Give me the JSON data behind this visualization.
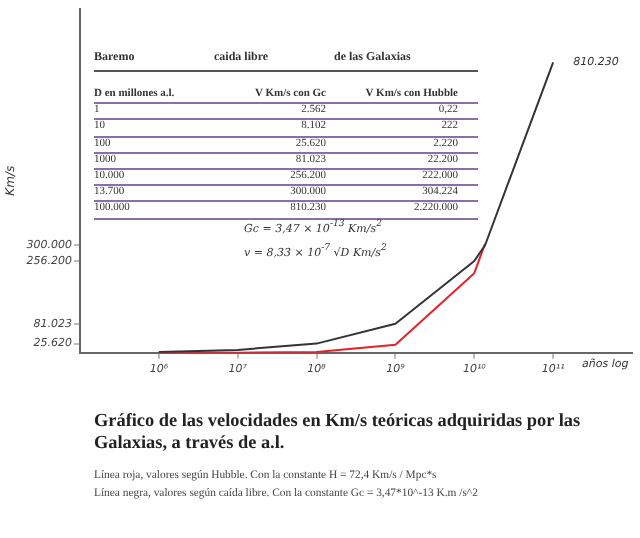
{
  "chart_data": {
    "type": "line",
    "title": "Gráfico de las velocidades en Km/s teóricas adquiridas por las Galaxias, a través de a.l.",
    "ylabel": "Km/s",
    "xlabel": "años log",
    "x": [
      1000000,
      10000000,
      100000000,
      1000000000,
      10000000000,
      13700000000,
      100000000000
    ],
    "series": [
      {
        "color": "#333333",
        "values": [
          2562,
          8102,
          25620,
          81023,
          256200,
          300000,
          810230
        ],
        "value_labels": [
          null,
          null,
          null,
          null,
          null,
          null,
          "810.230"
        ]
      },
      {
        "color": "#e8202a",
        "values": [
          0.22,
          222,
          2220,
          22200,
          222000,
          304224,
          null
        ]
      }
    ],
    "log": "x",
    "xlim": [
      100000,
      1000000000000
    ],
    "xticks": [
      {
        "value": 1000000,
        "label": "10⁶"
      },
      {
        "value": 10000000,
        "label": "10⁷"
      },
      {
        "value": 100000000,
        "label": "10⁸"
      },
      {
        "value": 1000000000,
        "label": "10⁹"
      },
      {
        "value": 10000000000,
        "label": "10¹⁰"
      },
      {
        "value": 100000000000,
        "label": "10¹¹"
      }
    ],
    "ylim": [
      0,
      960000
    ],
    "yticks": [
      {
        "value": 25620,
        "label": "25.620"
      },
      {
        "value": 81023,
        "label": "81.023"
      },
      {
        "value": 256200,
        "label": "256.200"
      },
      {
        "value": 300000,
        "label": "300.000"
      }
    ],
    "marker": "none",
    "line_style": "solid",
    "grid": false,
    "legend": false,
    "annotations": [
      "Baremo",
      "caida libre",
      "de las Galaxias",
      "D en  millones a.l.",
      "V  Km/s con Gc",
      "V Km/s con Hubble",
      "1",
      "2.562",
      "0,22",
      "10",
      "8.102",
      "222",
      "100",
      "25.620",
      "2.220",
      "1000",
      "81.023",
      "22.200",
      "10.000",
      "256.200",
      "222.000",
      "13.700",
      "300.000",
      "304.224",
      "100.000",
      "810.230",
      "2.220.000",
      "Gc = 3,47 × 10$^{-13}$ Km/s$^{2}$",
      "v  = 8,33 × 10$^{-7}$ √D  Km/s$^{2}$",
      "Línea roja, valores según Hubble. Con la constante H = 72,4 Km/s / Mpc*s",
      "Línea negra, valores según caída libre. Con la constante Gc = 3,47*10^-13 K.m /s^2"
    ]
  }
}
